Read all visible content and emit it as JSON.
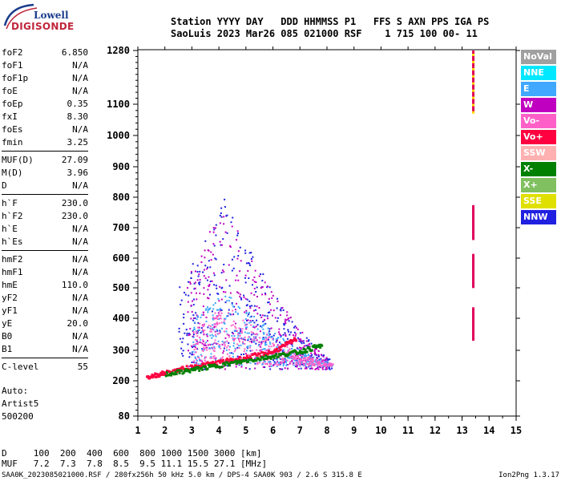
{
  "logo": {
    "line1": "Lowell",
    "line2": "DIGISONDE"
  },
  "header": {
    "labels": "Station YYYY DAY   DDD HHMMSS P1   FFS S AXN PPS IGA PS",
    "values": "SaoLuis 2023 Mar26 085 021000 RSF    1 715 100 00- 11"
  },
  "params": [
    {
      "key": "foF2",
      "value": "6.850"
    },
    {
      "key": "foF1",
      "value": "N/A"
    },
    {
      "key": "foF1p",
      "value": "N/A"
    },
    {
      "key": "foE",
      "value": "N/A"
    },
    {
      "key": "foEp",
      "value": "0.35"
    },
    {
      "key": "fxI",
      "value": "8.30"
    },
    {
      "key": "foEs",
      "value": "N/A"
    },
    {
      "key": "fmin",
      "value": "3.25"
    },
    {
      "key": "MUF(D)",
      "value": "27.09"
    },
    {
      "key": "M(D)",
      "value": "3.96"
    },
    {
      "key": "D",
      "value": "N/A"
    },
    {
      "key": "h`F",
      "value": "230.0"
    },
    {
      "key": "h`F2",
      "value": "230.0"
    },
    {
      "key": "h`E",
      "value": "N/A"
    },
    {
      "key": "h`Es",
      "value": "N/A"
    },
    {
      "key": "hmF2",
      "value": "N/A"
    },
    {
      "key": "hmF1",
      "value": "N/A"
    },
    {
      "key": "hmE",
      "value": "110.0"
    },
    {
      "key": "yF2",
      "value": "N/A"
    },
    {
      "key": "yF1",
      "value": "N/A"
    },
    {
      "key": "yE",
      "value": "20.0"
    },
    {
      "key": "B0",
      "value": "N/A"
    },
    {
      "key": "B1",
      "value": "N/A"
    },
    {
      "key": "C-level",
      "value": "55"
    }
  ],
  "auto": {
    "l1": "Auto:",
    "l2": "Artist5",
    "l3": "500200"
  },
  "legend": [
    {
      "label": "NoVal",
      "color": "#a0a0a0"
    },
    {
      "label": "NNE",
      "color": "#00e8ff"
    },
    {
      "label": "E",
      "color": "#40a8ff"
    },
    {
      "label": "W",
      "color": "#c000c0"
    },
    {
      "label": "Vo-",
      "color": "#ff60c8"
    },
    {
      "label": "Vo+",
      "color": "#ff0040"
    },
    {
      "label": "SSW",
      "color": "#ffb0b0"
    },
    {
      "label": "X-",
      "color": "#008000"
    },
    {
      "label": "X+",
      "color": "#80c060"
    },
    {
      "label": "SSE",
      "color": "#e0e000"
    },
    {
      "label": "NNW",
      "color": "#2020e0"
    }
  ],
  "dmuf": {
    "line1": "D     100  200  400  600  800 1000 1500 3000 [km]",
    "line2": "MUF   7.2  7.3  7.8  8.5  9.5 11.1 15.5 27.1 [MHz]"
  },
  "footer": "SAA0K_2023085021000.RSF / 280fx256h 50 kHz 5.0 km / DPS-4 SAA0K 903 / 2.6 S 315.8 E",
  "version": "Ion2Png 1.3.17",
  "chart_data": {
    "type": "scatter",
    "title": "",
    "xlabel": "",
    "ylabel": "",
    "xlim": [
      1,
      15
    ],
    "ylim": [
      80,
      1280
    ],
    "x_ticks": [
      1,
      2,
      3,
      4,
      5,
      6,
      7,
      8,
      9,
      10,
      11,
      12,
      13,
      14,
      15
    ],
    "y_ticks": [
      80,
      200,
      300,
      400,
      500,
      600,
      700,
      800,
      900,
      1000,
      1100,
      1280
    ],
    "grid": false,
    "legend_position": "right",
    "series": [
      {
        "name": "Vo+",
        "color": "#ff0040",
        "trace": {
          "x": [
            1.3,
            2.0,
            3.0,
            4.0,
            5.0,
            6.0,
            6.85
          ],
          "y": [
            215,
            230,
            250,
            265,
            280,
            300,
            340
          ]
        }
      },
      {
        "name": "X-",
        "color": "#008000",
        "trace": {
          "x": [
            2.0,
            3.0,
            4.0,
            5.0,
            6.0,
            7.0,
            7.8
          ],
          "y": [
            225,
            240,
            255,
            270,
            285,
            300,
            320
          ]
        }
      }
    ],
    "clutter": [
      {
        "name": "NNW",
        "color": "#2020e0",
        "x": [
          2.5,
          8.2
        ],
        "y": [
          240,
          800
        ]
      },
      {
        "name": "W",
        "color": "#c000c0",
        "x": [
          2.8,
          8.0
        ],
        "y": [
          240,
          800
        ]
      },
      {
        "name": "E",
        "color": "#40a8ff",
        "x": [
          3.0,
          8.2
        ],
        "y": [
          250,
          500
        ]
      },
      {
        "name": "Vo-",
        "color": "#ff60c8",
        "x": [
          3.0,
          8.2
        ],
        "y": [
          250,
          450
        ]
      }
    ],
    "interference": {
      "x": 13.4,
      "y_segments": [
        [
          1080,
          1280
        ],
        [
          670,
          780
        ],
        [
          510,
          620
        ],
        [
          340,
          440
        ]
      ]
    }
  }
}
